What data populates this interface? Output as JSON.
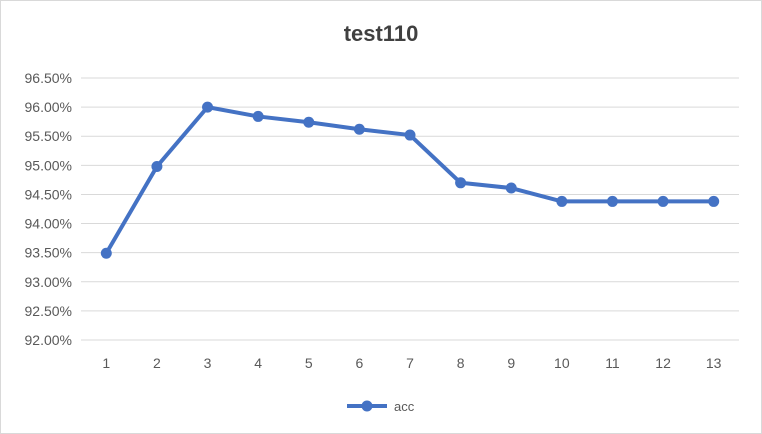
{
  "chart_data": {
    "type": "line",
    "title": "test110",
    "x": [
      "1",
      "2",
      "3",
      "4",
      "5",
      "6",
      "7",
      "8",
      "9",
      "10",
      "11",
      "12",
      "13"
    ],
    "series": [
      {
        "name": "acc",
        "values": [
          0.9349,
          0.9498,
          0.96,
          0.9584,
          0.9574,
          0.9562,
          0.9552,
          0.947,
          0.9461,
          0.9438,
          0.9438,
          0.9438,
          0.9438
        ]
      }
    ],
    "ylim": [
      0.92,
      0.965
    ],
    "yticks": [
      "92.00%",
      "92.50%",
      "93.00%",
      "93.50%",
      "94.00%",
      "94.50%",
      "95.00%",
      "95.50%",
      "96.00%",
      "96.50%"
    ],
    "grid": true,
    "legend_position": "bottom",
    "colors": {
      "series": "#4472c4",
      "grid": "#d9d9d9"
    }
  }
}
